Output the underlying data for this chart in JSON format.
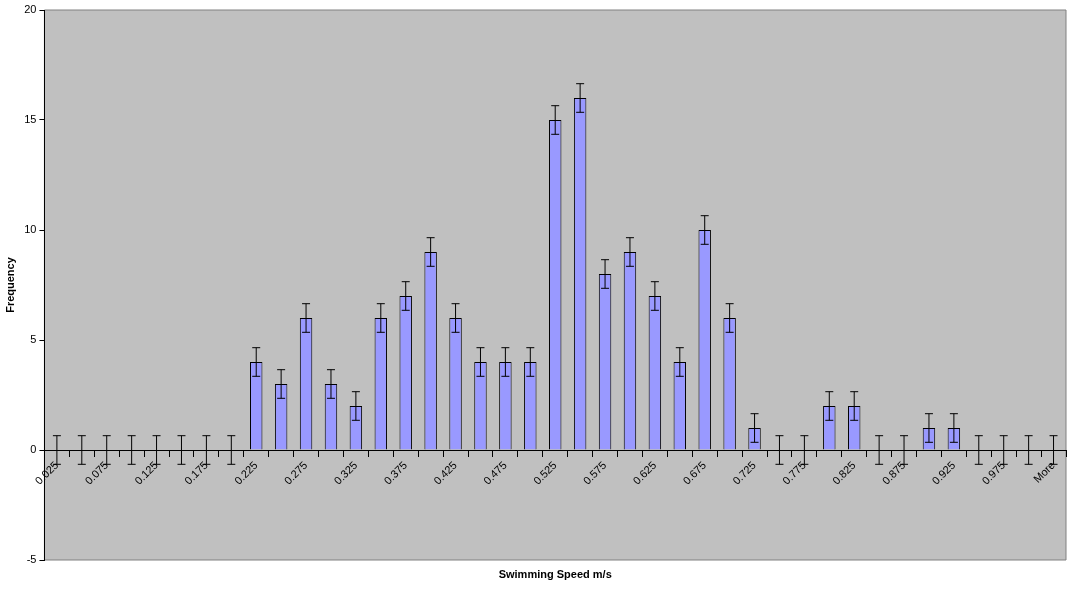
{
  "chart_data": {
    "type": "bar",
    "xlabel": "Swimming Speed m/s",
    "ylabel": "Frequency",
    "categories": [
      "0.025",
      null,
      "0.075",
      null,
      "0.125",
      null,
      "0.175",
      null,
      "0.225",
      null,
      "0.275",
      null,
      "0.325",
      null,
      "0.375",
      null,
      "0.425",
      null,
      "0.475",
      null,
      "0.525",
      null,
      "0.575",
      null,
      "0.625",
      null,
      "0.675",
      null,
      "0.725",
      null,
      "0.775",
      null,
      "0.825",
      null,
      "0.875",
      null,
      "0.925",
      null,
      "0.975",
      null,
      "More"
    ],
    "values": [
      0,
      0,
      0,
      0,
      0,
      0,
      0,
      0,
      4,
      3,
      6,
      3,
      2,
      6,
      7,
      9,
      6,
      4,
      4,
      4,
      15,
      16,
      8,
      9,
      7,
      4,
      10,
      6,
      1,
      0,
      0,
      2,
      2,
      0,
      0,
      1,
      1,
      0,
      0,
      0,
      0
    ],
    "errors": [
      0.65,
      0.65,
      0.65,
      0.65,
      0.65,
      0.65,
      0.65,
      0.65,
      0.65,
      0.65,
      0.65,
      0.65,
      0.65,
      0.65,
      0.65,
      0.65,
      0.65,
      0.65,
      0.65,
      0.65,
      0.65,
      0.65,
      0.65,
      0.65,
      0.65,
      0.65,
      0.65,
      0.65,
      0.65,
      0.65,
      0.65,
      0.65,
      0.65,
      0.65,
      0.65,
      0.65,
      0.65,
      0.65,
      0.65,
      0.65,
      0.65
    ],
    "color": "#9999ff",
    "ylim": [
      -5,
      20
    ],
    "yticks": [
      -5,
      0,
      5,
      10,
      15,
      20
    ],
    "grid": false,
    "legend": false
  }
}
